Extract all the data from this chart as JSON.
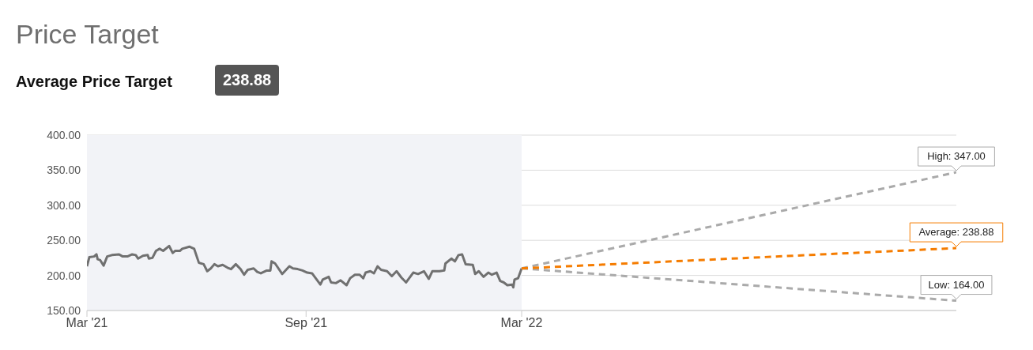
{
  "chart_data": {
    "type": "line",
    "title": "Price Target",
    "subtitle": "Average Price Target",
    "annotations": [
      "238.88",
      {
        "text": "High: 347.00",
        "x": "2023-03-01",
        "y": 347
      },
      {
        "text": "Average: 238.88",
        "x": "2023-03-01",
        "y": 238.88
      },
      {
        "text": "Low: 164.00",
        "x": "2023-03-01",
        "y": 164
      }
    ],
    "xlim": [
      "2021-03-01",
      "2023-03-01"
    ],
    "xticks": [
      {
        "value": "2021-03-01",
        "label": "Mar '21"
      },
      {
        "value": "2021-09-01",
        "label": "Sep '21"
      },
      {
        "value": "2022-03-01",
        "label": "Mar '22"
      }
    ],
    "ylim": [
      150,
      400
    ],
    "yticks": [
      {
        "value": 150,
        "label": "150.00"
      },
      {
        "value": 200,
        "label": "200.00"
      },
      {
        "value": 250,
        "label": "250.00"
      },
      {
        "value": 300,
        "label": "300.00"
      },
      {
        "value": 350,
        "label": "350.00"
      },
      {
        "value": 400,
        "label": "400.00"
      }
    ],
    "grid": "y",
    "legend": false,
    "marker": "none",
    "bands": [
      {
        "axis": "x",
        "from": "2021-03-01",
        "to": "2022-03-01",
        "color": "#f2f3f7"
      }
    ],
    "series": [
      {
        "color": "#707070",
        "line_style": "solid",
        "x": [
          "2021-03-01",
          "2021-03-03",
          "2021-03-07",
          "2021-03-09",
          "2021-03-10",
          "2021-03-12",
          "2021-03-15",
          "2021-03-18",
          "2021-03-22",
          "2021-03-28",
          "2021-03-31",
          "2021-04-04",
          "2021-04-08",
          "2021-04-11",
          "2021-04-13",
          "2021-04-17",
          "2021-04-21",
          "2021-04-22",
          "2021-04-25",
          "2021-04-28",
          "2021-05-01",
          "2021-05-04",
          "2021-05-09",
          "2021-05-12",
          "2021-05-14",
          "2021-05-18",
          "2021-05-20",
          "2021-05-26",
          "2021-05-30",
          "2021-06-03",
          "2021-06-07",
          "2021-06-10",
          "2021-06-13",
          "2021-06-16",
          "2021-06-19",
          "2021-06-23",
          "2021-06-27",
          "2021-06-30",
          "2021-07-04",
          "2021-07-08",
          "2021-07-11",
          "2021-07-14",
          "2021-07-19",
          "2021-07-22",
          "2021-07-25",
          "2021-07-30",
          "2021-08-02",
          "2021-08-03",
          "2021-08-06",
          "2021-08-12",
          "2021-08-18",
          "2021-08-21",
          "2021-08-25",
          "2021-08-29",
          "2021-09-02",
          "2021-09-06",
          "2021-09-13",
          "2021-09-15",
          "2021-09-20",
          "2021-09-22",
          "2021-09-26",
          "2021-09-30",
          "2021-10-05",
          "2021-10-08",
          "2021-10-12",
          "2021-10-16",
          "2021-10-19",
          "2021-10-21",
          "2021-10-25",
          "2021-10-28",
          "2021-10-31",
          "2021-11-03",
          "2021-11-08",
          "2021-11-12",
          "2021-11-16",
          "2021-11-20",
          "2021-11-24",
          "2021-11-30",
          "2021-12-04",
          "2021-12-09",
          "2021-12-13",
          "2021-12-16",
          "2021-12-22",
          "2021-12-26",
          "2021-12-27",
          "2022-01-01",
          "2022-01-04",
          "2022-01-07",
          "2022-01-10",
          "2022-01-13",
          "2022-01-19",
          "2022-01-21",
          "2022-01-24",
          "2022-01-28",
          "2022-02-01",
          "2022-02-04",
          "2022-02-08",
          "2022-02-11",
          "2022-02-14",
          "2022-02-17",
          "2022-02-21",
          "2022-02-22",
          "2022-02-23",
          "2022-02-26",
          "2022-03-01"
        ],
        "values": [
          213,
          226,
          227,
          230,
          223,
          222,
          214,
          227,
          229,
          230,
          227,
          227,
          230,
          229,
          224,
          228,
          229,
          224,
          225,
          235,
          238,
          235,
          242,
          232,
          235,
          235,
          238,
          241,
          238,
          218,
          216,
          206,
          210,
          216,
          213,
          215,
          211,
          209,
          216,
          209,
          201,
          208,
          210,
          205,
          203,
          207,
          207,
          220,
          217,
          202,
          213,
          210,
          209,
          207,
          204,
          203,
          187,
          194,
          198,
          190,
          189,
          193,
          186,
          196,
          201,
          201,
          196,
          204,
          206,
          203,
          213,
          208,
          206,
          199,
          206,
          197,
          190,
          204,
          202,
          206,
          195,
          206,
          206,
          207,
          217,
          224,
          220,
          229,
          230,
          216,
          215,
          202,
          206,
          198,
          204,
          201,
          204,
          192,
          190,
          186,
          187,
          183,
          194,
          196,
          210
        ]
      },
      {
        "color": "#aaaaaa",
        "line_style": "dashed",
        "x": [
          "2022-03-01",
          "2023-03-01"
        ],
        "values": [
          210,
          347
        ]
      },
      {
        "color": "#aaaaaa",
        "line_style": "dashed",
        "x": [
          "2022-03-01",
          "2023-03-01"
        ],
        "values": [
          210,
          164
        ]
      },
      {
        "color": "#f57c00",
        "line_style": "dashed",
        "x": [
          "2022-03-01",
          "2023-03-01"
        ],
        "values": [
          210,
          238.88
        ]
      }
    ]
  }
}
